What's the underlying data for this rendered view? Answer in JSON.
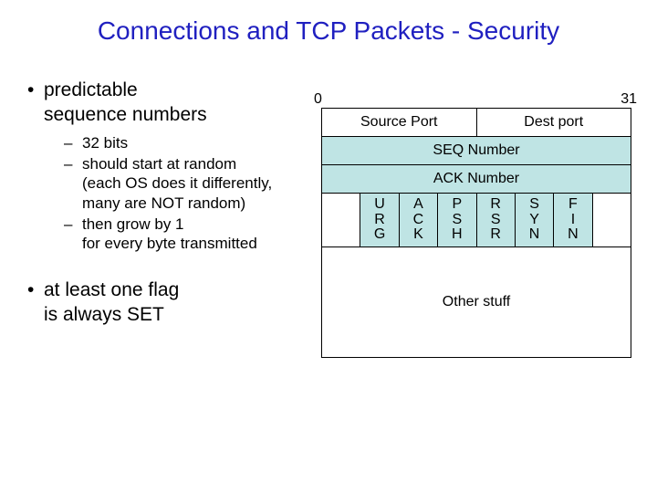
{
  "title_color": "#2020c0",
  "title": "Connections and TCP Packets - Security",
  "bullets": {
    "b1a": "predictable",
    "b1a_line2": "sequence numbers",
    "sub1": "32 bits",
    "sub2_l1": "should start at random",
    "sub2_l2": "(each OS does it differently,",
    "sub2_l3": "many are NOT random)",
    "sub3_l1": "then grow by 1",
    "sub3_l2": "for every byte transmitted",
    "b2a": "at least one flag",
    "b2a_line2": "is always SET"
  },
  "diagram": {
    "bit_left": "0",
    "bit_right": "31",
    "row1_left": "Source Port",
    "row1_right": "Dest port",
    "row2": "SEQ Number",
    "row3": "ACK Number",
    "flags": [
      "U\nR\nG",
      "A\nC\nK",
      "P\nS\nH",
      "R\nS\nR",
      "S\nY\nN",
      "F\nI\nN"
    ],
    "row5": "Other stuff",
    "highlight_bg": "#bfe4e4",
    "border": "#000000"
  }
}
